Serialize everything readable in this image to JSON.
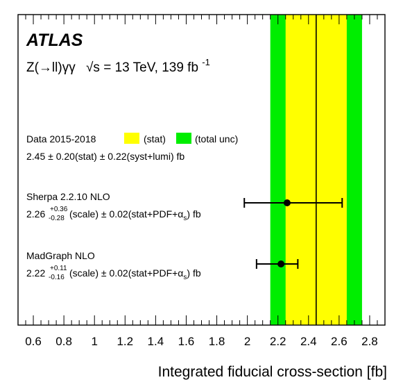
{
  "chart_data": {
    "type": "scatter",
    "orientation": "horizontal",
    "experiment_label": "ATLAS",
    "process": "Z(→ll)γγ",
    "energy": "√s = 13 TeV, 139 fb",
    "energy_sup": "-1",
    "xlabel": "Integrated fiducial cross-section [fb]",
    "xlim": [
      0.5,
      2.9
    ],
    "xticks": [
      0.6,
      0.8,
      1.0,
      1.2,
      1.4,
      1.6,
      1.8,
      2.0,
      2.2,
      2.4,
      2.6,
      2.8
    ],
    "xtick_labels": [
      "0.6",
      "0.8",
      "1",
      "1.2",
      "1.4",
      "1.6",
      "1.8",
      "2",
      "2.2",
      "2.4",
      "2.6",
      "2.8"
    ],
    "data": {
      "label": "Data 2015-2018",
      "legend_stat": "(stat)",
      "legend_total": "(total unc)",
      "value": 2.45,
      "stat": 0.2,
      "total": 0.3,
      "result_text": "2.45 ± 0.20(stat) ± 0.22(syst+lumi) fb",
      "colors": {
        "stat": "#ffff00",
        "total": "#00ee00",
        "line": "#000000"
      }
    },
    "predictions": [
      {
        "label": "Sherpa 2.2.10 NLO",
        "value": 2.26,
        "err_up": 0.36,
        "err_down": 0.28,
        "value_text": "2.26",
        "up_text": "+0.36",
        "down_text": "-0.28",
        "rest_text": "(scale) ± 0.02(stat+PDF+",
        "alpha_text": "α",
        "alpha_sub": "s",
        "tail_text": ") fb"
      },
      {
        "label": "MadGraph NLO",
        "value": 2.22,
        "err_up": 0.11,
        "err_down": 0.16,
        "value_text": "2.22",
        "up_text": "+0.11",
        "down_text": "-0.16",
        "rest_text": "(scale) ± 0.02(stat+PDF+",
        "alpha_text": "α",
        "alpha_sub": "s",
        "tail_text": ") fb"
      }
    ]
  }
}
